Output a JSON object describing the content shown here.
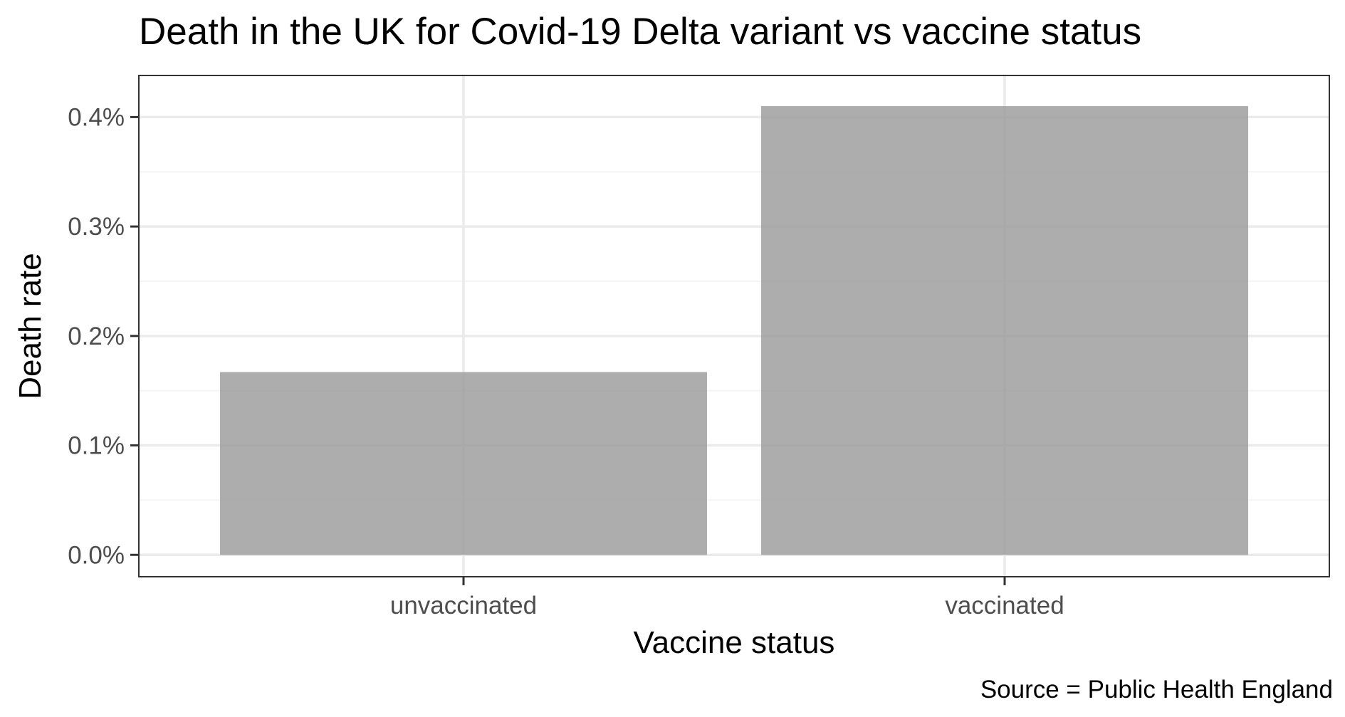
{
  "chart_data": {
    "type": "bar",
    "title": "Death in the UK for Covid-19 Delta variant vs vaccine status",
    "xlabel": "Vaccine status",
    "ylabel": "Death rate",
    "caption": "Source = Public Health England",
    "categories": [
      "unvaccinated",
      "vaccinated"
    ],
    "values": [
      0.167,
      0.41
    ],
    "value_unit": "%",
    "ylim": [
      -0.02,
      0.438
    ],
    "y_ticks": [
      0.0,
      0.1,
      0.2,
      0.3,
      0.4
    ],
    "y_tick_labels": [
      "0.0%",
      "0.1%",
      "0.2%",
      "0.3%",
      "0.4%"
    ],
    "y_minor_ticks": [
      0.05,
      0.15,
      0.25,
      0.35
    ],
    "grid": true,
    "legend": "none",
    "colors": {
      "bar_fill": "#999999",
      "bar_opacity": 0.8,
      "grid_major": "#ebebeb",
      "grid_minor": "#f4f4f4",
      "panel_border": "#333333",
      "tick_text": "#4d4d4d",
      "text": "#000000"
    }
  }
}
